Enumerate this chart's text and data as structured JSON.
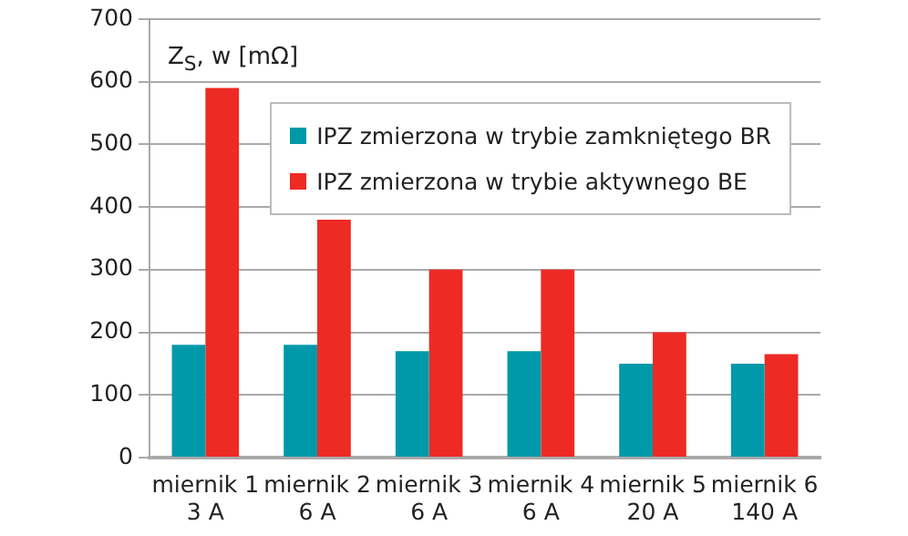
{
  "chart_data": {
    "type": "bar",
    "ylabel": "Z$_{S}$, w [mΩ]",
    "categories": [
      "miernik 1\n3 A",
      "miernik 2\n6 A",
      "miernik 3\n6 A",
      "miernik 4\n6 A",
      "miernik 5\n20 A",
      "miernik 6\n140 A"
    ],
    "series": [
      {
        "name": "IPZ zmierzona w trybie zamkniętego BR",
        "color": "#0099aa",
        "values": [
          180,
          180,
          170,
          170,
          150,
          150
        ]
      },
      {
        "name": "IPZ zmierzona w trybie aktywnego BE",
        "color": "#ee2a24",
        "values": [
          590,
          380,
          300,
          300,
          200,
          165
        ]
      }
    ],
    "ylim": [
      0,
      700
    ],
    "yticks": [
      0,
      100,
      200,
      300,
      400,
      500,
      600,
      700
    ],
    "grid": "y",
    "legend": "top right"
  }
}
